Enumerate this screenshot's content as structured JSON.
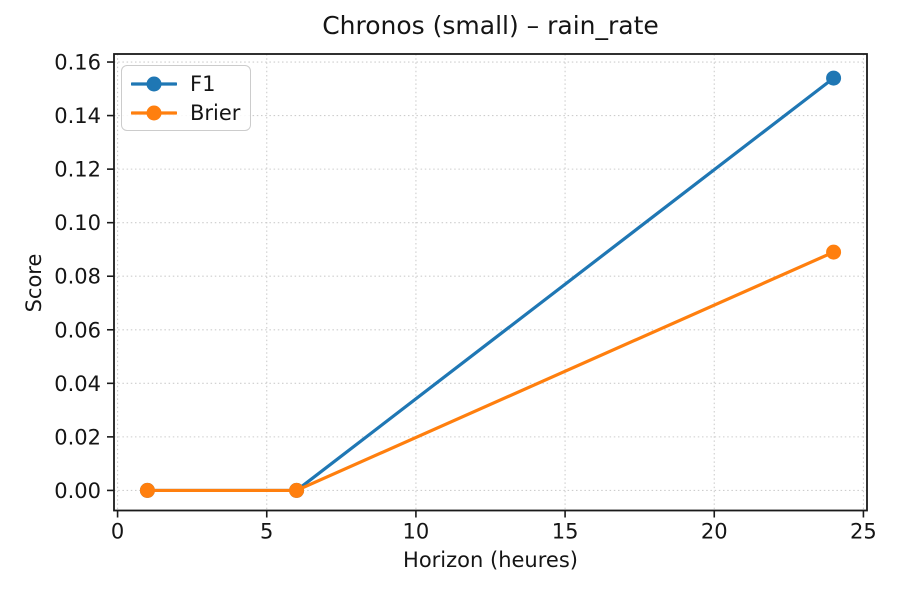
{
  "chart_data": {
    "type": "line",
    "title": "Chronos (small) – rain_rate",
    "xlabel": "Horizon (heures)",
    "ylabel": "Score",
    "x": [
      1,
      6,
      24
    ],
    "series": [
      {
        "name": "F1",
        "color": "#1f77b4",
        "values": [
          0.0,
          0.0,
          0.154
        ]
      },
      {
        "name": "Brier",
        "color": "#ff7f0e",
        "values": [
          0.0,
          0.0,
          0.089
        ]
      }
    ],
    "xticks": [
      0,
      5,
      10,
      15,
      20,
      25
    ],
    "xtick_labels": [
      "0",
      "5",
      "10",
      "15",
      "20",
      "25"
    ],
    "ytick_labels": [
      "0.00",
      "0.02",
      "0.04",
      "0.06",
      "0.08",
      "0.10",
      "0.12",
      "0.14",
      "0.16"
    ],
    "xlim": [
      -0.12,
      25.12
    ],
    "ylim": [
      -0.0075,
      0.163
    ],
    "grid": true,
    "grid_style": "dotted",
    "legend_position": "upper left",
    "marker": "circle",
    "colors": {
      "f1": "#1f77b4",
      "brier": "#ff7f0e",
      "grid": "#cdcdcd",
      "spine": "#1a1a1a"
    }
  }
}
